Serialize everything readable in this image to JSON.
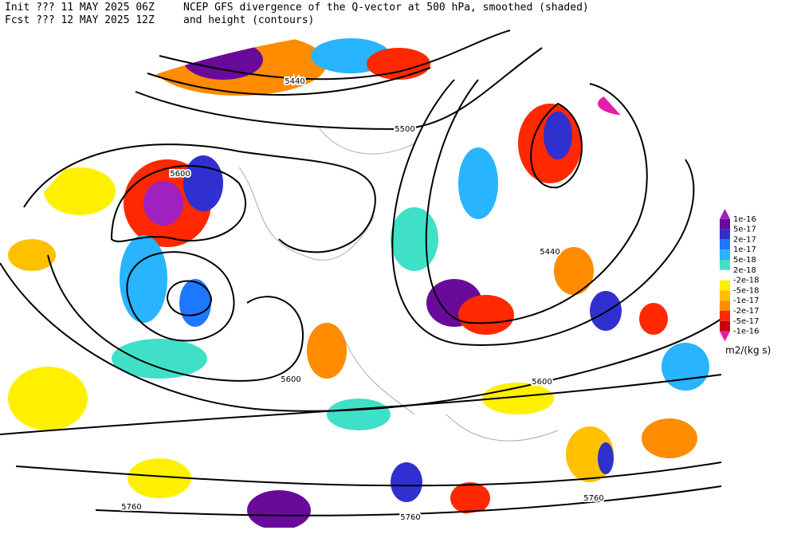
{
  "header": {
    "init": "Init  ??? 11 MAY 2025 06Z",
    "fcst": "Fcst ??? 12 MAY 2025 12Z",
    "title": "NCEP GFS divergence of the Q-vector at 500 hPa, smoothed (shaded)",
    "subtitle": "and height (contours)"
  },
  "contour_labels": [
    5440,
    5440,
    5500,
    5600,
    5600,
    5600,
    5760,
    5760,
    5760
  ],
  "colorbar": {
    "labels": [
      "1e-16",
      "5e-17",
      "2e-17",
      "1e-17",
      "5e-18",
      "2e-18",
      "-2e-18",
      "-5e-18",
      "-1e-17",
      "-2e-17",
      "-5e-17",
      "-1e-16"
    ],
    "colors": [
      "#a020c0",
      "#6a0a9a",
      "#3030d0",
      "#1e78ff",
      "#28b4ff",
      "#40e0c8",
      "#ffffff",
      "#fff000",
      "#ffc000",
      "#ff8c00",
      "#ff2800",
      "#c80014",
      "#e81ca8"
    ],
    "unit": "m2/(kg s)"
  }
}
